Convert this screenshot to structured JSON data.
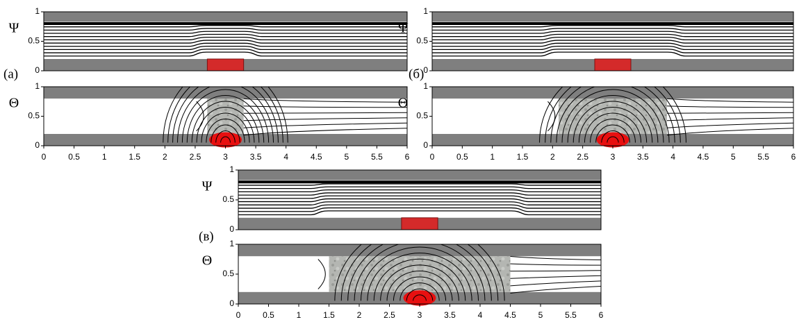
{
  "figure": {
    "xlim": [
      0,
      6
    ],
    "ylim": [
      0,
      1
    ],
    "xticks": [
      0,
      0.5,
      1,
      1.5,
      2,
      2.5,
      3,
      3.5,
      4,
      4.5,
      5,
      5.5,
      6
    ],
    "yticks": [
      0,
      0.5,
      1
    ],
    "panels": [
      {
        "label": "(а)",
        "psi_label": "Ψ",
        "theta_label": "Θ"
      },
      {
        "label": "(б)",
        "psi_label": "Ψ",
        "theta_label": "Θ"
      },
      {
        "label": "(в)",
        "psi_label": "Ψ",
        "theta_label": "Θ"
      }
    ]
  }
}
